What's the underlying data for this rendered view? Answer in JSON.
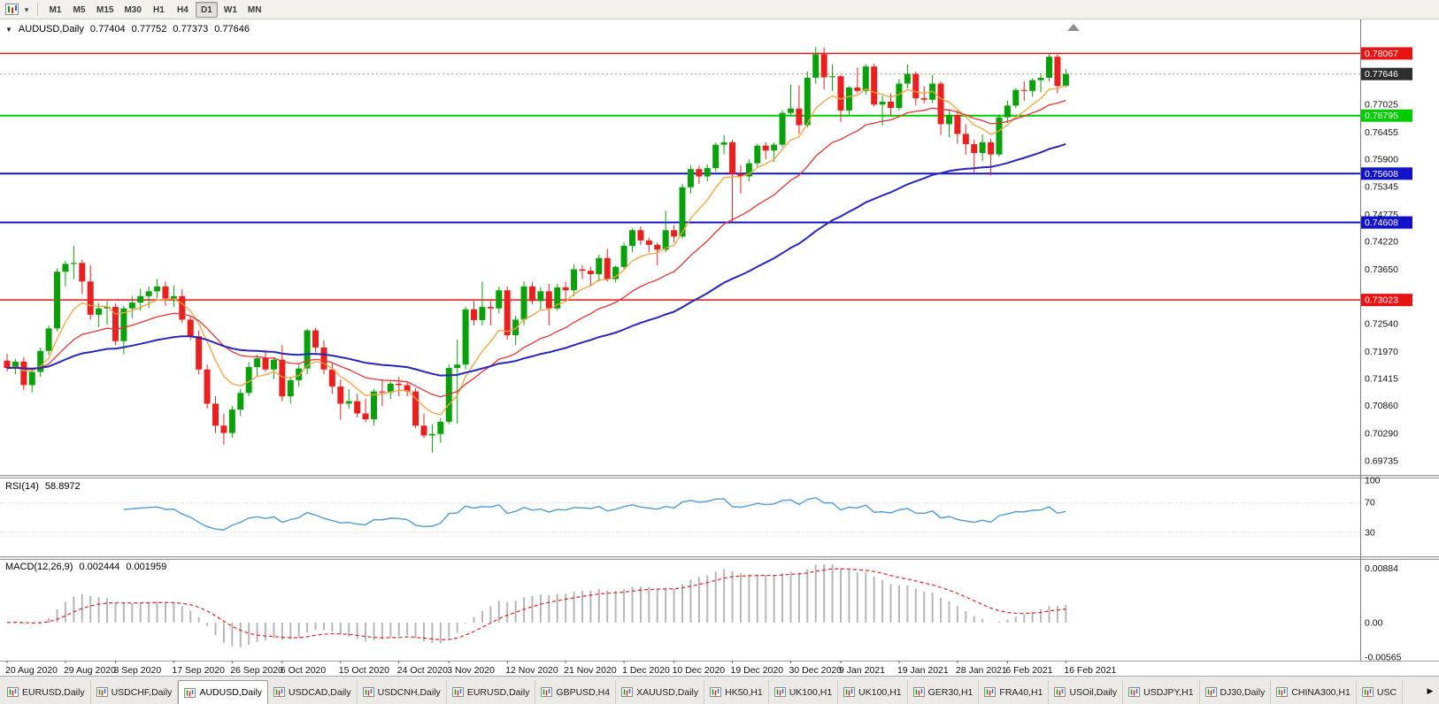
{
  "toolbar": {
    "timeframes": [
      {
        "label": "M1"
      },
      {
        "label": "M5"
      },
      {
        "label": "M15"
      },
      {
        "label": "M30"
      },
      {
        "label": "H1"
      },
      {
        "label": "H4"
      },
      {
        "label": "D1"
      },
      {
        "label": "W1"
      },
      {
        "label": "MN"
      }
    ],
    "active_timeframe": "D1"
  },
  "icons": {
    "collapse_arrow": "▼",
    "dropdown_caret": "▾",
    "tab_scroll_right": "▶"
  },
  "chart": {
    "symbol_line": {
      "symbol": "AUDUSD,Daily",
      "open": "0.77404",
      "high": "0.77752",
      "low": "0.77373",
      "close": "0.77646"
    }
  },
  "indicators": {
    "rsi": {
      "name": "RSI(14)",
      "value": "58.8972"
    },
    "macd": {
      "name": "MACD(12,26,9)",
      "main": "0.002444",
      "signal": "0.001959"
    }
  },
  "tabs": {
    "active_index": 2,
    "items": [
      {
        "label": "EURUSD,Daily"
      },
      {
        "label": "USDCHF,Daily"
      },
      {
        "label": "AUDUSD,Daily"
      },
      {
        "label": "USDCAD,Daily"
      },
      {
        "label": "USDCNH,Daily"
      },
      {
        "label": "EURUSD,Daily"
      },
      {
        "label": "GBPUSD,H4"
      },
      {
        "label": "XAUUSD,Daily"
      },
      {
        "label": "HK50,H1"
      },
      {
        "label": "UK100,H1"
      },
      {
        "label": "UK100,H1"
      },
      {
        "label": "GER30,H1"
      },
      {
        "label": "FRA40,H1"
      },
      {
        "label": "USOil,Daily"
      },
      {
        "label": "USDJPY,H1"
      },
      {
        "label": "DJ30,Daily"
      },
      {
        "label": "CHINA300,H1"
      },
      {
        "label": "USC"
      }
    ]
  },
  "chart_data": {
    "type": "candlestick",
    "symbol": "AUDUSD",
    "timeframe": "Daily",
    "current_ohlc": {
      "open": 0.77404,
      "high": 0.77752,
      "low": 0.77373,
      "close": 0.77646
    },
    "y_axis": {
      "min": 0.6946,
      "max": 0.7869,
      "labels": [
        "0.77025",
        "0.76455",
        "0.75900",
        "0.75345",
        "0.74775",
        "0.74220",
        "0.73650",
        "0.72540",
        "0.71970",
        "0.71415",
        "0.70860",
        "0.70290",
        "0.69735"
      ]
    },
    "x_labels": [
      "20 Aug 2020",
      "29 Aug 2020",
      "8 Sep 2020",
      "17 Sep 2020",
      "26 Sep 2020",
      "6 Oct 2020",
      "15 Oct 2020",
      "24 Oct 2020",
      "3 Nov 2020",
      "12 Nov 2020",
      "21 Nov 2020",
      "1 Dec 2020",
      "10 Dec 2020",
      "19 Dec 2020",
      "30 Dec 2020",
      "9 Jan 2021",
      "19 Jan 2021",
      "28 Jan 2021",
      "6 Feb 2021",
      "16 Feb 2021"
    ],
    "hlines": [
      {
        "price": 0.78067,
        "label": "0.78067",
        "color": "#e81414",
        "width": 1.5
      },
      {
        "price": 0.76795,
        "label": "0.76795",
        "color": "#00cc00",
        "width": 2
      },
      {
        "price": 0.75608,
        "label": "0.75608",
        "color": "#1212c8",
        "width": 2
      },
      {
        "price": 0.74608,
        "label": "0.74608",
        "color": "#1212c8",
        "width": 2
      },
      {
        "price": 0.73023,
        "label": "0.73023",
        "color": "#e81414",
        "width": 1.5
      }
    ],
    "bid": {
      "price": 0.77646,
      "label": "0.77646",
      "badge_color": "#2e2e2e"
    },
    "moving_averages": [
      {
        "type": "ema",
        "period": 8,
        "color": "#f2a33c",
        "width": 1.3
      },
      {
        "type": "ema",
        "period": 21,
        "color": "#e23434",
        "width": 1.3
      },
      {
        "type": "ema",
        "period": 55,
        "color": "#2626bb",
        "width": 2
      }
    ],
    "candle_colors": {
      "up": "#09a109",
      "down": "#ea1f1f"
    },
    "rsi": {
      "period": 14,
      "color": "#4f9bd5",
      "levels": [
        70,
        30
      ],
      "level_color": "#c8c8c8",
      "axis_labels": [
        "100",
        "70",
        "30"
      ],
      "current": 58.8972
    },
    "macd": {
      "fast": 12,
      "slow": 26,
      "signal_period": 9,
      "hist_color": "#b6b6b6",
      "signal_color": "#e02020",
      "axis_labels": [
        "0.00884",
        "0.00",
        "-0.00565"
      ],
      "current_main": 0.002444,
      "current_signal": 0.001959
    },
    "candles": [
      [
        0.7178,
        0.7192,
        0.7156,
        0.7163
      ],
      [
        0.7163,
        0.7182,
        0.715,
        0.7176
      ],
      [
        0.7176,
        0.7185,
        0.7118,
        0.7128
      ],
      [
        0.7128,
        0.716,
        0.7113,
        0.7155
      ],
      [
        0.7155,
        0.7205,
        0.7145,
        0.7198
      ],
      [
        0.7198,
        0.725,
        0.719,
        0.7244
      ],
      [
        0.7244,
        0.7367,
        0.7238,
        0.736
      ],
      [
        0.736,
        0.7382,
        0.733,
        0.7376
      ],
      [
        0.7376,
        0.7413,
        0.7345,
        0.7378
      ],
      [
        0.7378,
        0.7385,
        0.7315,
        0.734
      ],
      [
        0.734,
        0.7373,
        0.7262,
        0.7272
      ],
      [
        0.7272,
        0.7296,
        0.7247,
        0.7285
      ],
      [
        0.7285,
        0.73,
        0.7251,
        0.7288
      ],
      [
        0.7288,
        0.7295,
        0.721,
        0.7218
      ],
      [
        0.7218,
        0.729,
        0.7191,
        0.7285
      ],
      [
        0.7285,
        0.731,
        0.7265,
        0.7297
      ],
      [
        0.7297,
        0.7325,
        0.728,
        0.731
      ],
      [
        0.731,
        0.733,
        0.7285,
        0.732
      ],
      [
        0.732,
        0.7345,
        0.7305,
        0.733
      ],
      [
        0.733,
        0.734,
        0.729,
        0.7305
      ],
      [
        0.7305,
        0.7332,
        0.7288,
        0.731
      ],
      [
        0.731,
        0.7324,
        0.7255,
        0.7262
      ],
      [
        0.7262,
        0.727,
        0.722,
        0.7228
      ],
      [
        0.7228,
        0.724,
        0.715,
        0.716
      ],
      [
        0.716,
        0.717,
        0.708,
        0.709
      ],
      [
        0.709,
        0.7105,
        0.703,
        0.7045
      ],
      [
        0.7045,
        0.707,
        0.7006,
        0.703
      ],
      [
        0.703,
        0.7085,
        0.702,
        0.7078
      ],
      [
        0.7078,
        0.712,
        0.7065,
        0.7112
      ],
      [
        0.7112,
        0.7175,
        0.7105,
        0.7165
      ],
      [
        0.7165,
        0.719,
        0.7145,
        0.7183
      ],
      [
        0.7183,
        0.72,
        0.7155,
        0.716
      ],
      [
        0.716,
        0.7185,
        0.714,
        0.718
      ],
      [
        0.718,
        0.721,
        0.7095,
        0.7105
      ],
      [
        0.7105,
        0.7145,
        0.709,
        0.7138
      ],
      [
        0.7138,
        0.717,
        0.7125,
        0.7162
      ],
      [
        0.7162,
        0.7243,
        0.715,
        0.724
      ],
      [
        0.724,
        0.7245,
        0.7195,
        0.7205
      ],
      [
        0.7205,
        0.722,
        0.715,
        0.716
      ],
      [
        0.716,
        0.7175,
        0.711,
        0.7125
      ],
      [
        0.7125,
        0.714,
        0.7057,
        0.709
      ],
      [
        0.709,
        0.712,
        0.708,
        0.7095
      ],
      [
        0.7095,
        0.711,
        0.7062,
        0.707
      ],
      [
        0.707,
        0.71,
        0.7052,
        0.7058
      ],
      [
        0.7058,
        0.712,
        0.7045,
        0.7115
      ],
      [
        0.7115,
        0.714,
        0.7085,
        0.7113
      ],
      [
        0.7113,
        0.7135,
        0.71,
        0.7131
      ],
      [
        0.7131,
        0.7145,
        0.7105,
        0.7128
      ],
      [
        0.7128,
        0.7135,
        0.7105,
        0.7115
      ],
      [
        0.7115,
        0.7122,
        0.704,
        0.7045
      ],
      [
        0.7045,
        0.707,
        0.702,
        0.7025
      ],
      [
        0.7025,
        0.7048,
        0.699,
        0.7028
      ],
      [
        0.7028,
        0.706,
        0.701,
        0.7053
      ],
      [
        0.7053,
        0.717,
        0.7048,
        0.7163
      ],
      [
        0.7163,
        0.7221,
        0.7049,
        0.717
      ],
      [
        0.717,
        0.7288,
        0.716,
        0.7283
      ],
      [
        0.7283,
        0.73,
        0.725,
        0.7261
      ],
      [
        0.7261,
        0.734,
        0.725,
        0.7288
      ],
      [
        0.7288,
        0.73,
        0.725,
        0.7285
      ],
      [
        0.7285,
        0.733,
        0.7275,
        0.7322
      ],
      [
        0.7322,
        0.733,
        0.7221,
        0.723
      ],
      [
        0.723,
        0.727,
        0.721,
        0.7262
      ],
      [
        0.7262,
        0.734,
        0.725,
        0.733
      ],
      [
        0.733,
        0.7339,
        0.7293,
        0.73
      ],
      [
        0.73,
        0.7328,
        0.7283,
        0.732
      ],
      [
        0.732,
        0.7335,
        0.725,
        0.7285
      ],
      [
        0.7285,
        0.7335,
        0.728,
        0.7328
      ],
      [
        0.7328,
        0.734,
        0.73,
        0.7322
      ],
      [
        0.7322,
        0.7375,
        0.731,
        0.7365
      ],
      [
        0.7365,
        0.7374,
        0.7345,
        0.7362
      ],
      [
        0.7362,
        0.737,
        0.733,
        0.7355
      ],
      [
        0.7355,
        0.7395,
        0.734,
        0.7388
      ],
      [
        0.7388,
        0.7407,
        0.734,
        0.7345
      ],
      [
        0.7345,
        0.7373,
        0.7338,
        0.737
      ],
      [
        0.737,
        0.742,
        0.7365,
        0.7413
      ],
      [
        0.7413,
        0.7449,
        0.74,
        0.7445
      ],
      [
        0.7445,
        0.7453,
        0.7415,
        0.7424
      ],
      [
        0.7424,
        0.743,
        0.74,
        0.7415
      ],
      [
        0.7415,
        0.742,
        0.7373,
        0.7405
      ],
      [
        0.7405,
        0.7485,
        0.74,
        0.7445
      ],
      [
        0.7445,
        0.7455,
        0.742,
        0.7432
      ],
      [
        0.7432,
        0.754,
        0.7428,
        0.7533
      ],
      [
        0.7533,
        0.7578,
        0.752,
        0.757
      ],
      [
        0.757,
        0.7577,
        0.754,
        0.7555
      ],
      [
        0.7555,
        0.758,
        0.7545,
        0.7572
      ],
      [
        0.7572,
        0.7624,
        0.7565,
        0.762
      ],
      [
        0.762,
        0.764,
        0.76,
        0.7625
      ],
      [
        0.7625,
        0.763,
        0.7462,
        0.756
      ],
      [
        0.756,
        0.7578,
        0.752,
        0.7555
      ],
      [
        0.7555,
        0.759,
        0.7545,
        0.7582
      ],
      [
        0.7582,
        0.7622,
        0.7575,
        0.7618
      ],
      [
        0.7618,
        0.7625,
        0.759,
        0.7608
      ],
      [
        0.7608,
        0.7625,
        0.7585,
        0.762
      ],
      [
        0.762,
        0.769,
        0.7615,
        0.7685
      ],
      [
        0.7685,
        0.7743,
        0.768,
        0.7694
      ],
      [
        0.7694,
        0.7741,
        0.7642,
        0.766
      ],
      [
        0.766,
        0.777,
        0.7655,
        0.7757
      ],
      [
        0.7757,
        0.782,
        0.7745,
        0.7805
      ],
      [
        0.7805,
        0.7819,
        0.7733,
        0.7758
      ],
      [
        0.7758,
        0.7785,
        0.773,
        0.776
      ],
      [
        0.776,
        0.7763,
        0.7666,
        0.769
      ],
      [
        0.769,
        0.774,
        0.768,
        0.7737
      ],
      [
        0.7737,
        0.7778,
        0.7725,
        0.773
      ],
      [
        0.773,
        0.7785,
        0.7722,
        0.778
      ],
      [
        0.778,
        0.7786,
        0.7698,
        0.7702
      ],
      [
        0.7702,
        0.772,
        0.7659,
        0.7708
      ],
      [
        0.7708,
        0.7725,
        0.768,
        0.7695
      ],
      [
        0.7695,
        0.7754,
        0.769,
        0.7745
      ],
      [
        0.7745,
        0.7784,
        0.7735,
        0.7765
      ],
      [
        0.7765,
        0.777,
        0.77,
        0.7715
      ],
      [
        0.7715,
        0.774,
        0.7705,
        0.7712
      ],
      [
        0.7712,
        0.7763,
        0.7705,
        0.7745
      ],
      [
        0.7745,
        0.775,
        0.764,
        0.7662
      ],
      [
        0.7662,
        0.769,
        0.7635,
        0.7681
      ],
      [
        0.7681,
        0.769,
        0.7622,
        0.7642
      ],
      [
        0.7642,
        0.7662,
        0.76,
        0.7621
      ],
      [
        0.7621,
        0.763,
        0.7563,
        0.7603
      ],
      [
        0.7603,
        0.7641,
        0.7587,
        0.7625
      ],
      [
        0.7625,
        0.7632,
        0.7557,
        0.76
      ],
      [
        0.76,
        0.7682,
        0.7595,
        0.7676
      ],
      [
        0.7676,
        0.771,
        0.7664,
        0.77
      ],
      [
        0.77,
        0.7736,
        0.7695,
        0.7732
      ],
      [
        0.7732,
        0.775,
        0.771,
        0.773
      ],
      [
        0.773,
        0.7756,
        0.7718,
        0.7752
      ],
      [
        0.7752,
        0.7765,
        0.7727,
        0.7757
      ],
      [
        0.7757,
        0.7806,
        0.775,
        0.78
      ],
      [
        0.78,
        0.7805,
        0.7725,
        0.774
      ],
      [
        0.77404,
        0.77752,
        0.77373,
        0.77646
      ]
    ]
  }
}
